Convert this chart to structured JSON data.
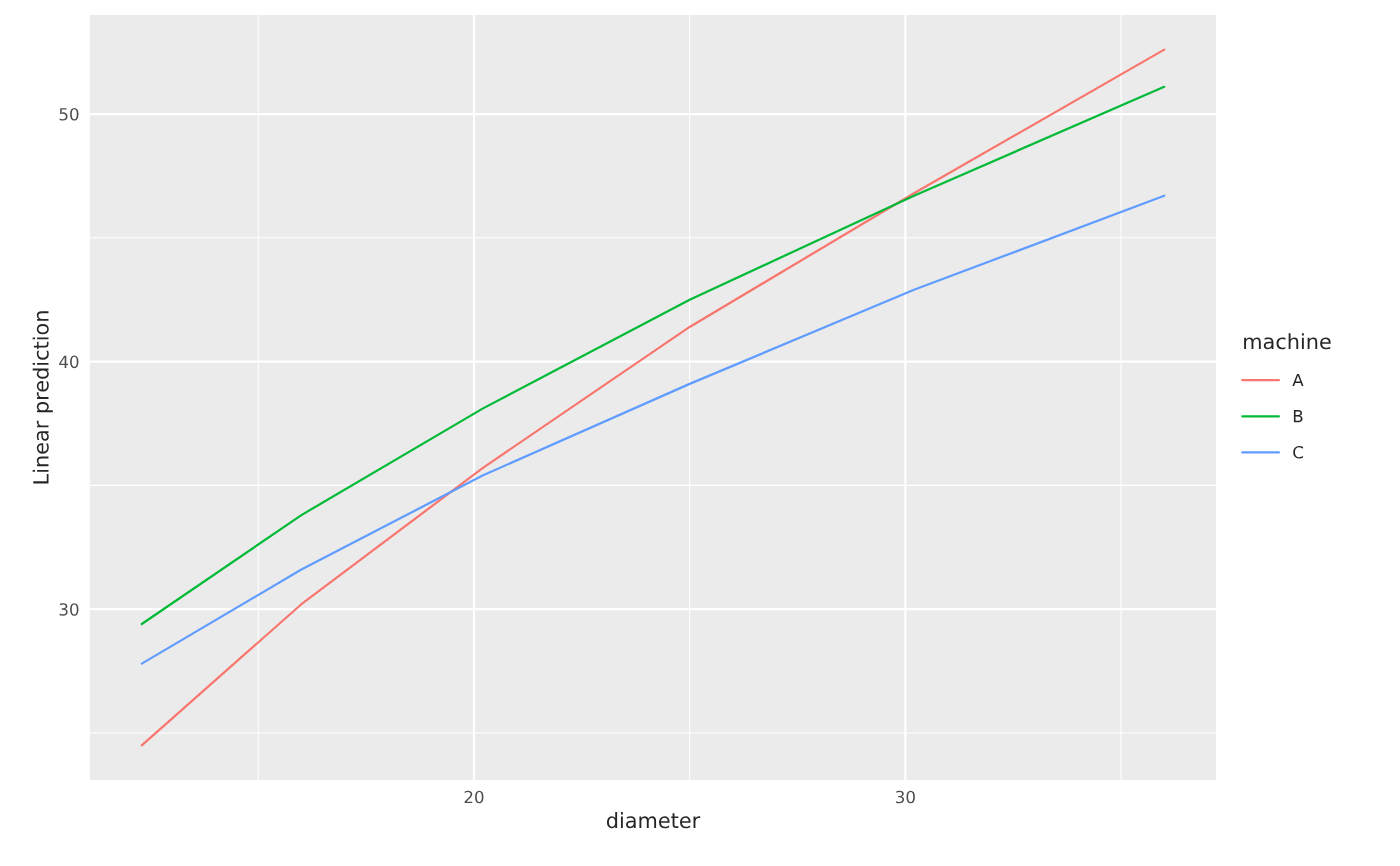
{
  "chart_data": {
    "type": "line",
    "xlabel": "diameter",
    "ylabel": "Linear prediction",
    "legend_title": "machine",
    "x": [
      12.3,
      16.0,
      20.2,
      25.0,
      30.2,
      36.0
    ],
    "series": [
      {
        "name": "A",
        "color": "#f8766d",
        "values": [
          24.5,
          30.2,
          35.7,
          41.4,
          46.8,
          52.6
        ]
      },
      {
        "name": "B",
        "color": "#00ba38",
        "values": [
          29.4,
          33.8,
          38.1,
          42.5,
          46.7,
          51.1
        ]
      },
      {
        "name": "C",
        "color": "#619cff",
        "values": [
          27.8,
          31.6,
          35.4,
          39.1,
          42.9,
          46.7
        ]
      }
    ],
    "xlim": [
      11.1,
      37.2
    ],
    "ylim": [
      23.1,
      54.0
    ],
    "xticks": [
      {
        "value": 15,
        "label": null
      },
      20,
      {
        "value": 25,
        "label": null
      },
      30,
      {
        "value": 35,
        "label": null
      }
    ],
    "yticks": [
      {
        "value": 25,
        "label": null
      },
      30,
      {
        "value": 35,
        "label": null
      },
      40,
      {
        "value": 45,
        "label": null
      },
      50
    ],
    "grid": true,
    "legend": "right",
    "marker": "none",
    "line_style": "solid"
  }
}
